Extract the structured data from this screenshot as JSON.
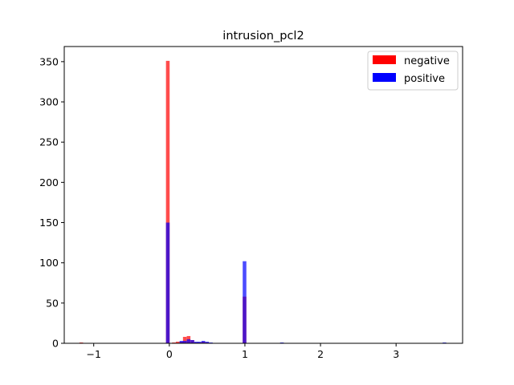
{
  "chart_data": {
    "type": "bar",
    "title": "intrusion_pcl2",
    "xlabel": "",
    "ylabel": "",
    "xlim": [
      -1.39,
      3.88
    ],
    "ylim": [
      0,
      368.8
    ],
    "xticks": [
      -1,
      0,
      1,
      2,
      3
    ],
    "xtick_labels": [
      "−1",
      "0",
      "1",
      "2",
      "3"
    ],
    "yticks": [
      0,
      50,
      100,
      150,
      200,
      250,
      300,
      350
    ],
    "ytick_labels": [
      "0",
      "50",
      "100",
      "150",
      "200",
      "250",
      "300",
      "350"
    ],
    "bin_width": 0.0485,
    "legend_position": "upper right",
    "series": [
      {
        "name": "negative",
        "color": "#ff0000",
        "alpha": 0.7,
        "bins": [
          {
            "x": -1.165,
            "count": 1
          },
          {
            "x": -0.02,
            "count": 351
          },
          {
            "x": 0.06,
            "count": 1
          },
          {
            "x": 0.11,
            "count": 2
          },
          {
            "x": 0.16,
            "count": 2
          },
          {
            "x": 0.205,
            "count": 8
          },
          {
            "x": 0.255,
            "count": 9
          },
          {
            "x": 0.305,
            "count": 4
          },
          {
            "x": 0.355,
            "count": 1
          },
          {
            "x": 0.4,
            "count": 1
          },
          {
            "x": 0.45,
            "count": 2
          },
          {
            "x": 0.5,
            "count": 1
          },
          {
            "x": 0.995,
            "count": 58
          }
        ]
      },
      {
        "name": "positive",
        "color": "#0000ff",
        "alpha": 0.7,
        "bins": [
          {
            "x": -0.02,
            "count": 150
          },
          {
            "x": 0.16,
            "count": 3
          },
          {
            "x": 0.205,
            "count": 3
          },
          {
            "x": 0.255,
            "count": 5
          },
          {
            "x": 0.305,
            "count": 4
          },
          {
            "x": 0.355,
            "count": 2
          },
          {
            "x": 0.4,
            "count": 2
          },
          {
            "x": 0.45,
            "count": 3
          },
          {
            "x": 0.5,
            "count": 2
          },
          {
            "x": 0.55,
            "count": 1
          },
          {
            "x": 0.995,
            "count": 102
          },
          {
            "x": 1.49,
            "count": 1
          },
          {
            "x": 3.64,
            "count": 1
          }
        ]
      }
    ]
  }
}
